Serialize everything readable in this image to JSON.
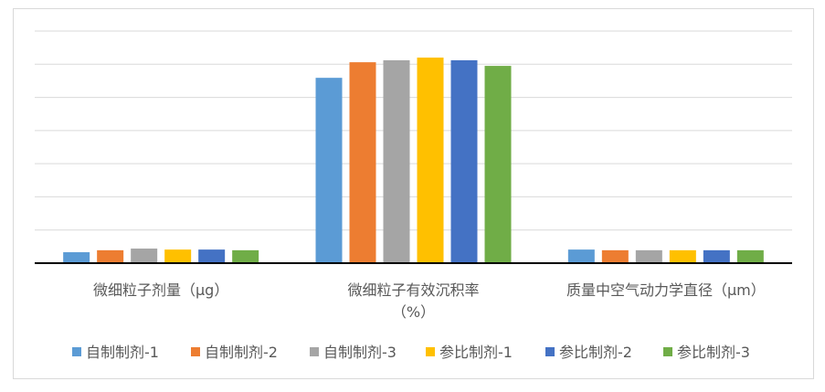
{
  "chart_data": {
    "type": "bar",
    "categories": [
      [
        "微细粒子剂量（μg）"
      ],
      [
        "微细粒子有效沉积率",
        "（%）"
      ],
      [
        "质量中空气动力学直径（μm）"
      ]
    ],
    "series": [
      {
        "name": "自制制剂-1",
        "color": "#5B9BD5",
        "values": [
          3.3,
          55.9,
          4.1
        ]
      },
      {
        "name": "自制制剂-2",
        "color": "#ED7D31",
        "values": [
          3.9,
          60.6,
          3.9
        ]
      },
      {
        "name": "自制制剂-3",
        "color": "#A5A5A5",
        "values": [
          4.4,
          61.2,
          3.9
        ]
      },
      {
        "name": "参比制剂-1",
        "color": "#FFC000",
        "values": [
          4.1,
          62.0,
          3.9
        ]
      },
      {
        "name": "参比制剂-2",
        "color": "#4472C4",
        "values": [
          4.1,
          61.2,
          3.9
        ]
      },
      {
        "name": "参比制剂-3",
        "color": "#70AD47",
        "values": [
          3.9,
          59.5,
          3.9
        ]
      }
    ],
    "ylim": [
      0,
      70
    ],
    "grid": true,
    "y_tick_labels_shown": false,
    "legend": "bottom"
  }
}
